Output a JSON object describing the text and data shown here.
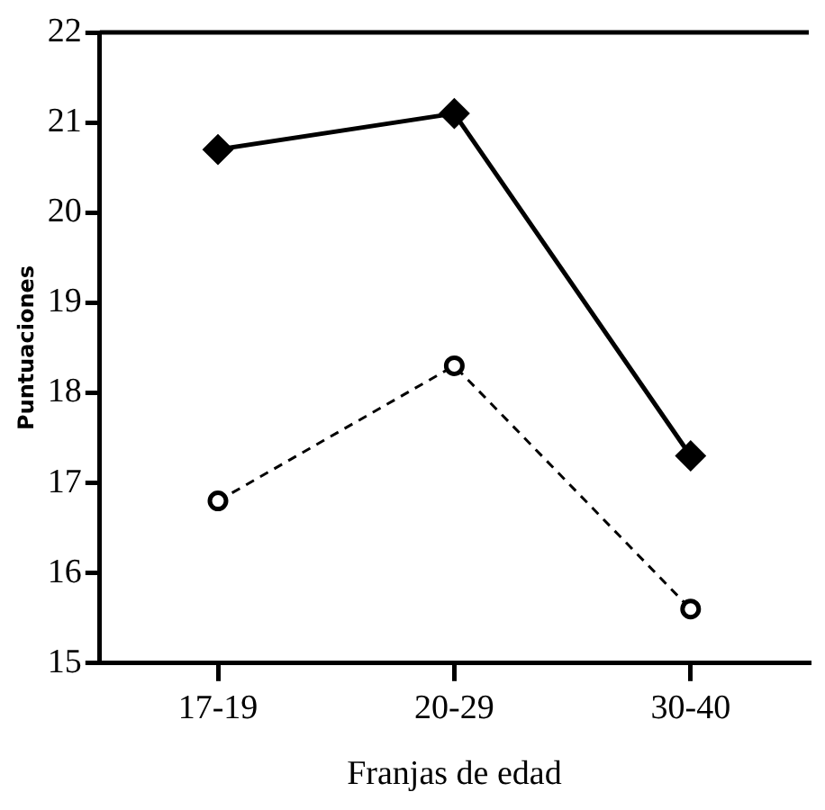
{
  "chart_data": {
    "type": "line",
    "xlabel": "Franjas de edad",
    "ylabel": "Puntuaciones",
    "categories": [
      "17-19",
      "20-29",
      "30-40"
    ],
    "series": [
      {
        "color": "#000000",
        "values": [
          20.7,
          21.1,
          17.3
        ],
        "marker": "diamond",
        "line_style": "solid"
      },
      {
        "color": "#000000",
        "values": [
          16.8,
          18.3,
          15.6
        ],
        "marker": "circle",
        "line_style": "dashed"
      }
    ],
    "ylim": [
      15,
      22
    ],
    "yticks": [
      15,
      16,
      17,
      18,
      19,
      20,
      21,
      22
    ],
    "grid": false,
    "legend": false
  }
}
